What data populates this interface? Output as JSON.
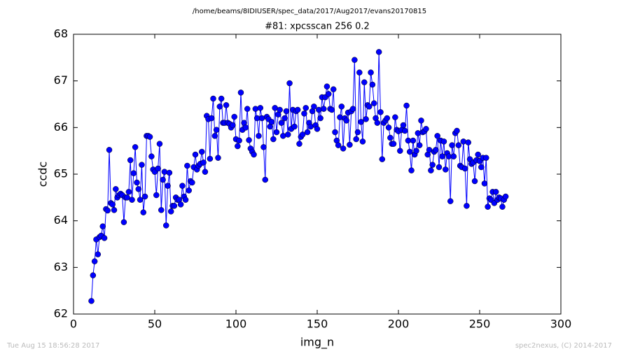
{
  "chart_data": {
    "type": "line",
    "suptitle": "/home/beams/8IDIUSER/spec_data/2017/Aug2017/evans20170815",
    "title": "#81: xpcsscan 256 0.2",
    "x_label": "img_n",
    "y_label": "ccdc",
    "footer_left": "Tue Aug 15 18:56:28 2017",
    "footer_right": "spec2nexus, (C) 2014-2017",
    "color": "#0000ff",
    "xlim": [
      0,
      300
    ],
    "xticks": [
      0,
      50,
      100,
      150,
      200,
      250,
      300
    ],
    "ylim": [
      62,
      68
    ],
    "yticks": [
      62,
      63,
      64,
      65,
      66,
      67,
      68
    ],
    "x": [
      11,
      12,
      13,
      14,
      15,
      16,
      17,
      18,
      19,
      20,
      21,
      22,
      23,
      24,
      25,
      26,
      27,
      28,
      29,
      30,
      31,
      32,
      33,
      34,
      35,
      36,
      37,
      38,
      39,
      40,
      41,
      42,
      43,
      44,
      45,
      46,
      47,
      48,
      49,
      50,
      51,
      52,
      53,
      54,
      55,
      56,
      57,
      58,
      59,
      60,
      61,
      62,
      63,
      64,
      65,
      66,
      67,
      68,
      69,
      70,
      71,
      72,
      73,
      74,
      75,
      76,
      77,
      78,
      79,
      80,
      81,
      82,
      83,
      84,
      85,
      86,
      87,
      88,
      89,
      90,
      91,
      92,
      93,
      94,
      95,
      96,
      97,
      98,
      99,
      100,
      101,
      102,
      103,
      104,
      105,
      106,
      107,
      108,
      109,
      110,
      111,
      112,
      113,
      114,
      115,
      116,
      117,
      118,
      119,
      120,
      121,
      122,
      123,
      124,
      125,
      126,
      127,
      128,
      129,
      130,
      131,
      132,
      133,
      134,
      135,
      136,
      137,
      138,
      139,
      140,
      141,
      142,
      143,
      144,
      145,
      146,
      147,
      148,
      149,
      150,
      151,
      152,
      153,
      154,
      155,
      156,
      157,
      158,
      159,
      160,
      161,
      162,
      163,
      164,
      165,
      166,
      167,
      168,
      169,
      170,
      171,
      172,
      173,
      174,
      175,
      176,
      177,
      178,
      179,
      180,
      181,
      182,
      183,
      184,
      185,
      186,
      187,
      188,
      189,
      190,
      191,
      192,
      193,
      194,
      195,
      196,
      197,
      198,
      199,
      200,
      201,
      202,
      203,
      204,
      205,
      206,
      207,
      208,
      209,
      210,
      211,
      212,
      213,
      214,
      215,
      216,
      217,
      218,
      219,
      220,
      221,
      222,
      223,
      224,
      225,
      226,
      227,
      228,
      229,
      230,
      231,
      232,
      233,
      234,
      235,
      236,
      237,
      238,
      239,
      240,
      241,
      242,
      243,
      244,
      245,
      246,
      247,
      248,
      249,
      250,
      251,
      252,
      253,
      254,
      255,
      256,
      257,
      258,
      259,
      260,
      261,
      262,
      263,
      264,
      265,
      266
    ],
    "values": [
      62.28,
      62.83,
      63.13,
      63.6,
      63.28,
      63.65,
      63.68,
      63.88,
      63.63,
      64.25,
      64.22,
      65.52,
      64.38,
      64.35,
      64.23,
      64.68,
      64.5,
      64.55,
      64.58,
      64.55,
      63.97,
      64.5,
      64.5,
      64.62,
      65.3,
      64.45,
      65.02,
      65.58,
      64.82,
      64.68,
      64.45,
      65.2,
      64.18,
      64.52,
      65.82,
      65.82,
      65.8,
      65.38,
      65.1,
      65.05,
      64.55,
      65.12,
      65.65,
      64.23,
      64.88,
      65.05,
      63.9,
      64.75,
      65.03,
      64.2,
      64.32,
      64.32,
      64.5,
      64.45,
      64.45,
      64.35,
      64.75,
      64.52,
      64.45,
      65.18,
      64.65,
      64.85,
      64.82,
      65.15,
      65.42,
      65.1,
      65.18,
      65.22,
      65.48,
      65.25,
      65.05,
      66.25,
      66.18,
      65.33,
      66.2,
      66.62,
      65.82,
      65.95,
      65.35,
      66.45,
      66.62,
      66.1,
      66.1,
      66.48,
      66.1,
      66.08,
      66.0,
      66.05,
      66.23,
      65.75,
      65.6,
      65.72,
      66.75,
      65.95,
      66.1,
      66.0,
      66.4,
      65.73,
      65.55,
      65.48,
      65.42,
      66.4,
      66.2,
      65.82,
      66.42,
      66.2,
      65.58,
      64.88,
      66.23,
      66.18,
      66.02,
      66.12,
      65.75,
      66.42,
      65.9,
      66.28,
      66.38,
      66.1,
      65.82,
      66.2,
      66.35,
      65.85,
      66.95,
      65.97,
      66.38,
      66.02,
      66.35,
      66.38,
      65.65,
      65.8,
      65.85,
      66.3,
      66.42,
      65.9,
      66.1,
      66.02,
      66.35,
      66.45,
      66.05,
      65.97,
      66.38,
      66.2,
      66.65,
      66.4,
      66.65,
      66.88,
      66.72,
      66.4,
      66.38,
      66.82,
      65.9,
      65.72,
      65.62,
      66.22,
      66.45,
      65.55,
      66.2,
      66.15,
      66.32,
      65.63,
      66.35,
      66.4,
      67.45,
      65.75,
      65.9,
      67.18,
      66.12,
      65.7,
      66.97,
      66.18,
      66.48,
      66.45,
      67.18,
      66.92,
      66.52,
      66.2,
      66.1,
      67.62,
      66.33,
      65.32,
      66.1,
      66.15,
      66.2,
      66.0,
      65.78,
      65.65,
      65.65,
      66.22,
      65.95,
      65.92,
      65.5,
      65.95,
      66.05,
      65.93,
      66.47,
      65.72,
      65.48,
      65.08,
      65.72,
      65.42,
      65.5,
      65.88,
      65.62,
      66.15,
      65.9,
      65.92,
      65.97,
      65.42,
      65.52,
      65.08,
      65.2,
      65.48,
      65.52,
      65.82,
      65.15,
      65.72,
      65.38,
      65.7,
      65.1,
      65.45,
      65.38,
      64.42,
      65.62,
      65.38,
      65.88,
      65.93,
      65.62,
      65.18,
      65.15,
      65.7,
      65.12,
      64.32,
      65.68,
      65.32,
      65.22,
      65.25,
      64.85,
      65.3,
      65.42,
      65.28,
      65.15,
      65.35,
      64.8,
      65.35,
      64.3,
      64.48,
      64.45,
      64.62,
      64.38,
      64.62,
      64.45,
      64.5,
      64.48,
      64.3,
      64.45,
      64.52
    ]
  }
}
